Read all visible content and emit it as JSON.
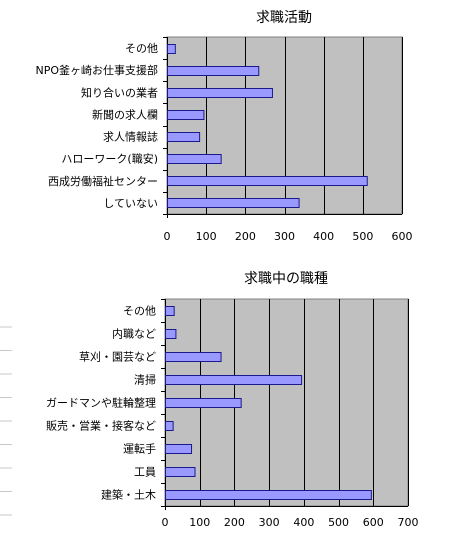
{
  "colors": {
    "plot_bg": "#c0c0c0",
    "bar_fill": "#9999ff",
    "bar_stroke": "#1a1a8c",
    "gridline": "#000000"
  },
  "chart_data": [
    {
      "type": "bar",
      "orientation": "horizontal",
      "title": "求職活動",
      "categories": [
        "その他",
        "NPO釜ヶ崎お仕事支援部",
        "知り合いの業者",
        "新聞の求人欄",
        "求人情報誌",
        "ハローワーク(職安)",
        "西成労働福祉センター",
        "していない"
      ],
      "values": [
        20,
        233,
        268,
        93,
        82,
        137,
        510,
        336
      ],
      "xlim": [
        0,
        600
      ],
      "xticks": [
        0,
        100,
        200,
        300,
        400,
        500,
        600
      ],
      "grid": true,
      "legend": "none"
    },
    {
      "type": "bar",
      "orientation": "horizontal",
      "title": "求職中の職種",
      "categories": [
        "その他",
        "内職など",
        "草刈・園芸など",
        "清掃",
        "ガードマンや駐輪整理",
        "販売・営業・接客など",
        "運転手",
        "工員",
        "建築・土木"
      ],
      "values": [
        25,
        30,
        160,
        392,
        218,
        22,
        75,
        85,
        593
      ],
      "xlim": [
        0,
        700
      ],
      "xticks": [
        0,
        100,
        200,
        300,
        400,
        500,
        600,
        700
      ],
      "grid": true,
      "legend": "none"
    }
  ]
}
